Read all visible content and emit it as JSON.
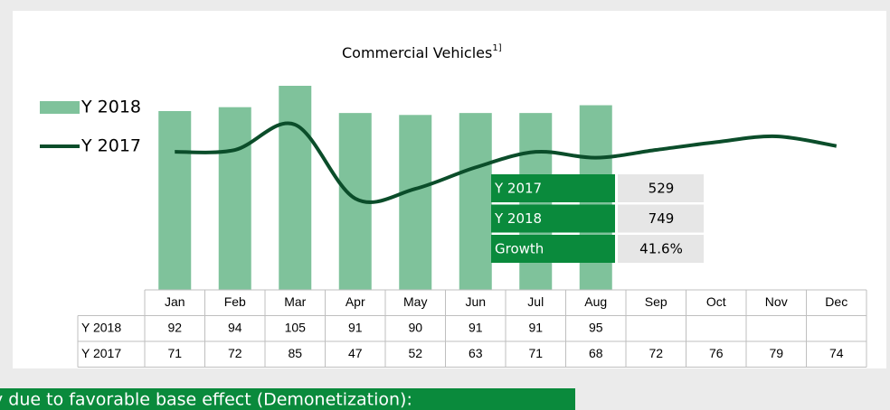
{
  "chart_data": {
    "type": "bar_line",
    "title": "Commercial Vehicles",
    "title_note": "1]",
    "categories": [
      "Jan",
      "Feb",
      "Mar",
      "Apr",
      "May",
      "Jun",
      "Jul",
      "Aug",
      "Sep",
      "Oct",
      "Nov",
      "Dec"
    ],
    "series": [
      {
        "name": "Y 2018",
        "type": "bar",
        "color": "#7fc29b",
        "values": [
          92,
          94,
          105,
          91,
          90,
          91,
          91,
          95,
          null,
          null,
          null,
          null
        ]
      },
      {
        "name": "Y 2017",
        "type": "line",
        "color": "#0b4d2a",
        "values": [
          71,
          72,
          85,
          47,
          52,
          63,
          71,
          68,
          72,
          76,
          79,
          74
        ]
      }
    ],
    "ylim": [
      0,
      105
    ]
  },
  "summary": {
    "rows": [
      [
        "Y 2017",
        529
      ],
      [
        "Y 2018",
        749
      ],
      [
        "Growth",
        "41.6%"
      ]
    ]
  },
  "banner": "y due to favorable base effect (Demonetization):"
}
